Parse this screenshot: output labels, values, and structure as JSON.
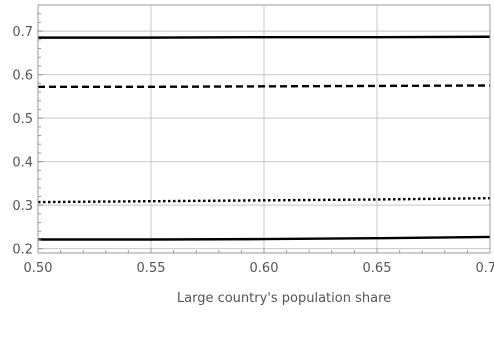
{
  "chart_data": {
    "type": "line",
    "title": "",
    "xlabel": "Large country's population share",
    "ylabel": "",
    "xlim": [
      0.5,
      0.7
    ],
    "ylim": [
      0.19,
      0.76
    ],
    "grid": true,
    "x_ticks": [
      0.5,
      0.55,
      0.6,
      0.65,
      0.7
    ],
    "x_tick_labels": [
      "0.50",
      "0.55",
      "0.60",
      "0.65",
      "0.70"
    ],
    "y_ticks": [
      0.2,
      0.3,
      0.4,
      0.5,
      0.6,
      0.7
    ],
    "y_tick_labels": [
      "0.2",
      "0.3",
      "0.4",
      "0.5",
      "0.6",
      "0.7"
    ],
    "series": [
      {
        "line_style": "solid",
        "color": "#000000",
        "x": [
          0.5,
          0.55,
          0.6,
          0.65,
          0.7
        ],
        "y": [
          0.685,
          0.685,
          0.686,
          0.686,
          0.687
        ]
      },
      {
        "line_style": "dashed",
        "color": "#000000",
        "x": [
          0.5,
          0.55,
          0.6,
          0.65,
          0.7
        ],
        "y": [
          0.572,
          0.572,
          0.573,
          0.574,
          0.575
        ]
      },
      {
        "line_style": "dotted",
        "color": "#000000",
        "x": [
          0.5,
          0.55,
          0.6,
          0.65,
          0.7
        ],
        "y": [
          0.307,
          0.309,
          0.311,
          0.313,
          0.316
        ]
      },
      {
        "line_style": "solid",
        "color": "#000000",
        "x": [
          0.5,
          0.55,
          0.6,
          0.65,
          0.7
        ],
        "y": [
          0.221,
          0.221,
          0.222,
          0.224,
          0.227
        ]
      }
    ]
  }
}
